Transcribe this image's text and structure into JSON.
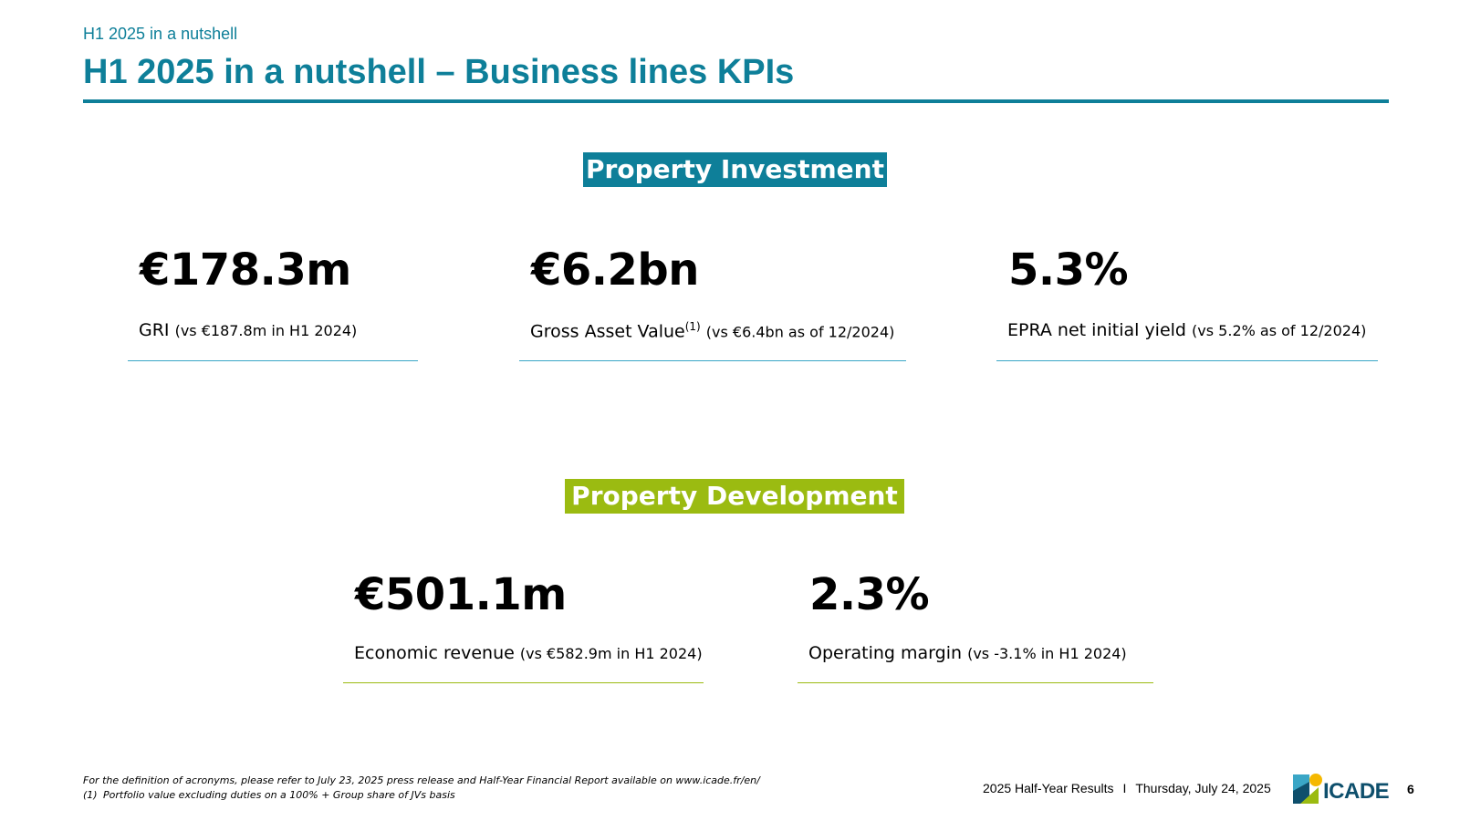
{
  "header": {
    "breadcrumb": "H1 2025 in a nutshell",
    "title": "H1 2025 in a nutshell – Business lines KPIs"
  },
  "property_investment": {
    "label": "Property Investment",
    "kpis": [
      {
        "value": "€178.3m",
        "caption": "GRI",
        "comparison": "(vs €187.8m in H1 2024)"
      },
      {
        "value": "€6.2bn",
        "caption": "Gross Asset Value",
        "footnote_ref": "(1)",
        "comparison": "(vs €6.4bn as of 12/2024)"
      },
      {
        "value": "5.3%",
        "caption": "EPRA net initial yield",
        "comparison": "(vs 5.2% as of 12/2024)"
      }
    ]
  },
  "property_development": {
    "label": "Property Development",
    "kpis": [
      {
        "value": "€501.1m",
        "caption": "Economic revenue",
        "comparison": "(vs €582.9m in H1 2024)"
      },
      {
        "value": "2.3%",
        "caption": "Operating margin",
        "comparison": "(vs -3.1% in H1 2024)"
      }
    ]
  },
  "footnotes": {
    "definition": "For the definition of acronyms, please refer to July 23, 2025 press release and Half-Year Financial Report available on www.icade.fr/en/",
    "note1_number": "(1)",
    "note1_text": "Portfolio value excluding duties on a 100% + Group share of JVs basis"
  },
  "footer": {
    "report": "2025 Half-Year Results",
    "separator": "I",
    "date": "Thursday, July 24, 2025",
    "logo_text": "ICADE",
    "page_number": "6"
  },
  "colors": {
    "brand_teal": "#0e7f99",
    "brand_green": "#9bbb11",
    "rule_blue": "#3aa6c6"
  }
}
